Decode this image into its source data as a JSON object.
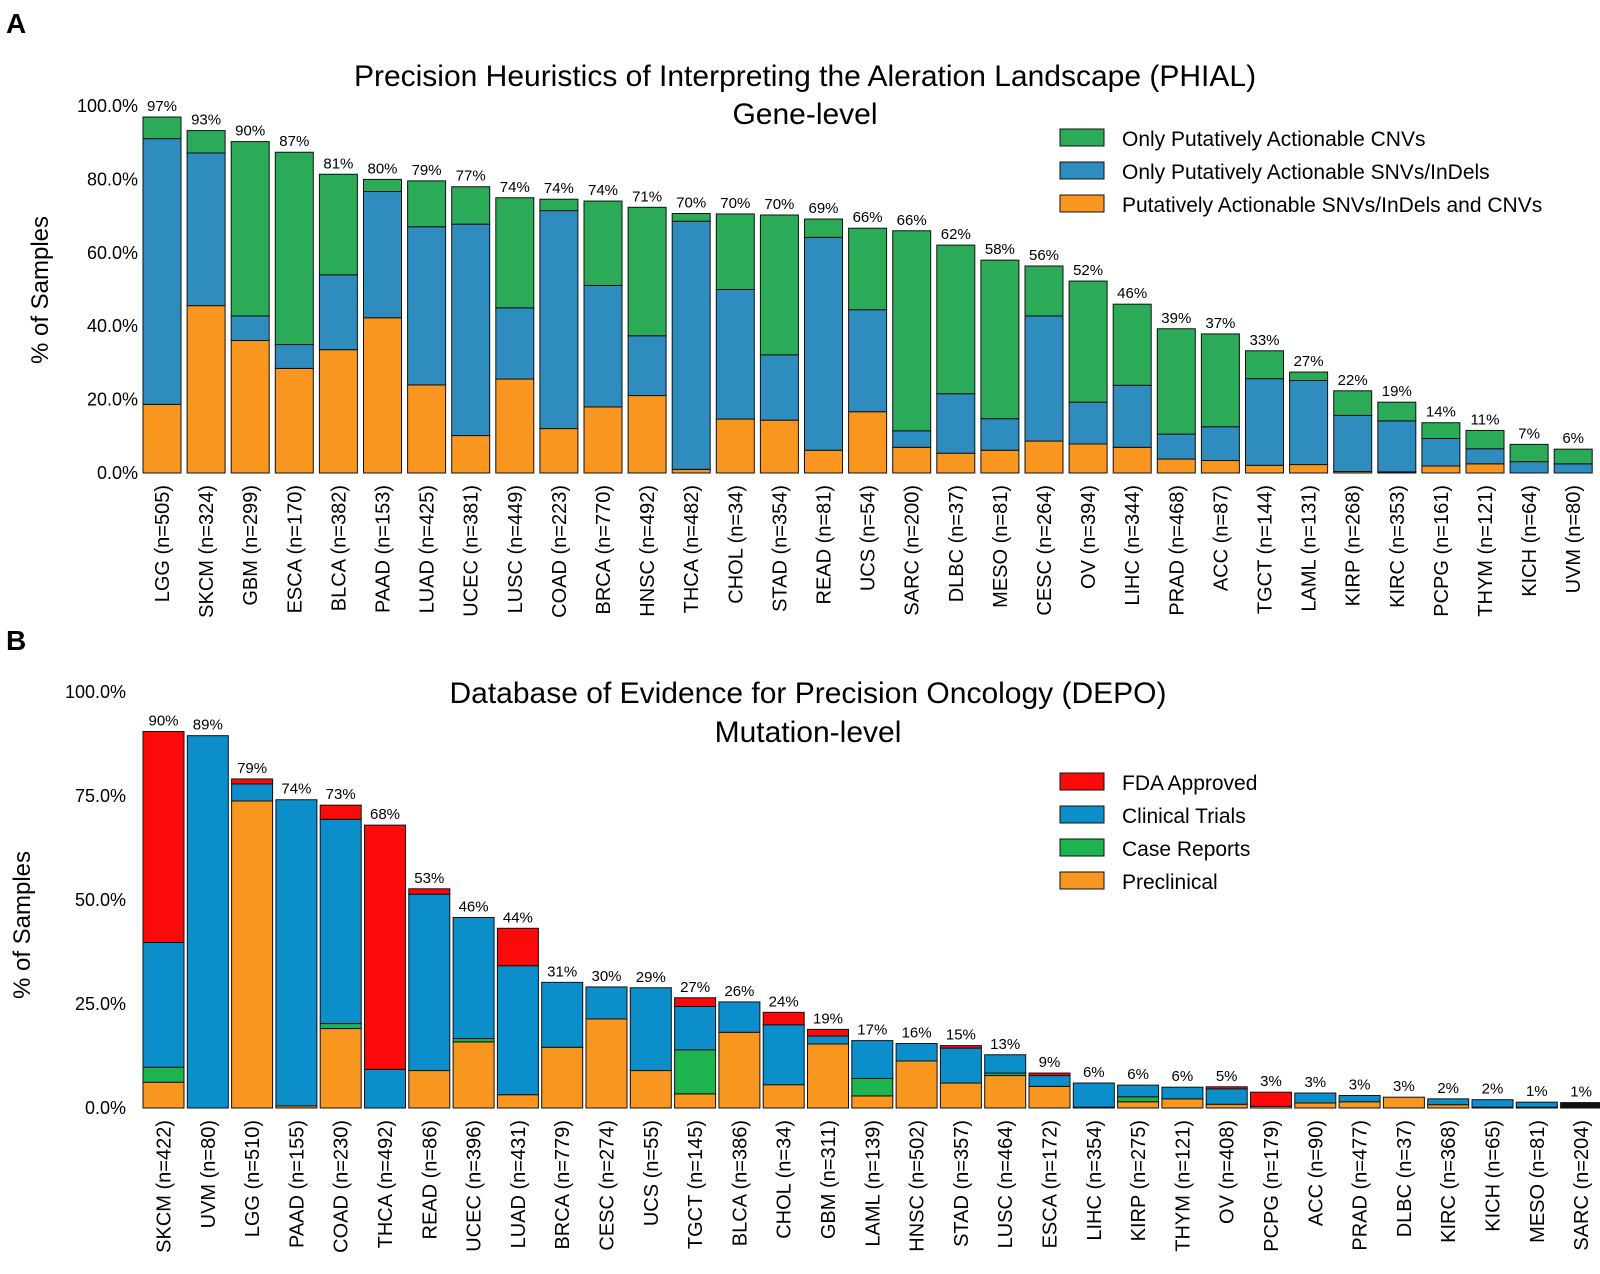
{
  "chart_data": [
    {
      "type": "bar",
      "stacked": true,
      "panel_label": "A",
      "title": "Precision Heuristics of Interpreting the Aleration Landscape (PHIAL)",
      "subtitle": "Gene-level",
      "ylabel": "% of Samples",
      "ylim": [
        0,
        100
      ],
      "yticks": [
        "0.0%",
        "20.0%",
        "40.0%",
        "60.0%",
        "80.0%",
        "100.0%"
      ],
      "legend_position": "top-right",
      "categories": [
        "LGG (n=505)",
        "SKCM (n=324)",
        "GBM (n=299)",
        "ESCA (n=170)",
        "BLCA (n=382)",
        "PAAD (n=153)",
        "LUAD (n=425)",
        "UCEC (n=381)",
        "LUSC (n=449)",
        "COAD (n=223)",
        "BRCA (n=770)",
        "HNSC (n=492)",
        "THCA (n=482)",
        "CHOL (n=34)",
        "STAD (n=354)",
        "READ (n=81)",
        "UCS (n=54)",
        "SARC (n=200)",
        "DLBC (n=37)",
        "MESO (n=81)",
        "CESC (n=264)",
        "OV (n=394)",
        "LIHC (n=344)",
        "PRAD (n=468)",
        "ACC (n=87)",
        "TGCT (n=144)",
        "LAML (n=131)",
        "KIRP (n=268)",
        "KIRC (n=353)",
        "PCPG (n=161)",
        "THYM (n=121)",
        "KICH (n=64)",
        "UVM (n=80)"
      ],
      "totals": [
        "97%",
        "93%",
        "90%",
        "87%",
        "81%",
        "80%",
        "79%",
        "77%",
        "74%",
        "74%",
        "74%",
        "71%",
        "70%",
        "70%",
        "70%",
        "69%",
        "66%",
        "66%",
        "62%",
        "58%",
        "56%",
        "52%",
        "46%",
        "39%",
        "37%",
        "33%",
        "27%",
        "22%",
        "19%",
        "14%",
        "11%",
        "7%",
        "6%"
      ],
      "series": [
        {
          "name": "Putatively Actionable SNVs/InDels and CNVs",
          "color": "#f9961f",
          "values": [
            18.7,
            45.6,
            36.1,
            28.5,
            33.6,
            42.3,
            24.0,
            10.2,
            25.6,
            12.1,
            18.0,
            21.1,
            1.0,
            14.7,
            14.4,
            6.2,
            16.7,
            7.0,
            5.4,
            6.2,
            8.7,
            7.9,
            7.0,
            3.8,
            3.4,
            2.1,
            2.3,
            0.4,
            0.3,
            1.9,
            2.5,
            0.0,
            0.0
          ]
        },
        {
          "name": "Only Putatively Actionable SNVs/InDels",
          "color": "#2f8cbf",
          "values": [
            72.4,
            41.6,
            6.7,
            6.5,
            20.4,
            34.4,
            43.1,
            57.6,
            19.4,
            59.4,
            33.1,
            16.3,
            67.6,
            35.3,
            17.8,
            58.0,
            27.8,
            4.5,
            16.2,
            8.6,
            34.1,
            11.4,
            16.9,
            6.8,
            9.2,
            23.6,
            22.9,
            15.3,
            13.9,
            7.5,
            4.1,
            3.1,
            2.5
          ]
        },
        {
          "name": "Only Putatively Actionable CNVs",
          "color": "#2baa57",
          "values": [
            5.9,
            6.1,
            47.5,
            52.4,
            27.4,
            3.3,
            12.5,
            10.2,
            30.0,
            3.1,
            23.0,
            35.0,
            2.1,
            20.6,
            38.1,
            5.0,
            22.2,
            54.5,
            40.5,
            43.2,
            13.6,
            33.0,
            22.1,
            28.7,
            25.3,
            7.6,
            2.3,
            6.7,
            5.1,
            4.3,
            5.0,
            4.7,
            4.0
          ]
        }
      ]
    },
    {
      "type": "bar",
      "stacked": true,
      "panel_label": "B",
      "title": "Database of Evidence for Precision Oncology (DEPO)",
      "subtitle": "Mutation-level",
      "ylabel": "% of Samples",
      "ylim": [
        0,
        100
      ],
      "yticks": [
        "0.0%",
        "25.0%",
        "50.0%",
        "75.0%",
        "100.0%"
      ],
      "legend_position": "top-right",
      "categories": [
        "SKCM (n=422)",
        "UVM (n=80)",
        "LGG (n=510)",
        "PAAD (n=155)",
        "COAD (n=230)",
        "THCA (n=492)",
        "READ (n=86)",
        "UCEC (n=396)",
        "LUAD (n=431)",
        "BRCA (n=779)",
        "CESC (n=274)",
        "UCS (n=55)",
        "TGCT (n=145)",
        "BLCA (n=386)",
        "CHOL (n=34)",
        "GBM (n=311)",
        "LAML (n=139)",
        "HNSC (n=502)",
        "STAD (n=357)",
        "LUSC (n=464)",
        "ESCA (n=172)",
        "LIHC (n=354)",
        "KIRP (n=275)",
        "THYM (n=121)",
        "OV (n=408)",
        "PCPG (n=179)",
        "ACC (n=90)",
        "PRAD (n=477)",
        "DLBC (n=37)",
        "KIRC (n=368)",
        "KICH (n=65)",
        "MESO (n=81)",
        "SARC (n=204)"
      ],
      "totals": [
        "90%",
        "89%",
        "79%",
        "74%",
        "73%",
        "68%",
        "53%",
        "46%",
        "44%",
        "31%",
        "30%",
        "29%",
        "27%",
        "26%",
        "24%",
        "19%",
        "17%",
        "16%",
        "15%",
        "13%",
        "9%",
        "6%",
        "6%",
        "6%",
        "5%",
        "3%",
        "3%",
        "3%",
        "3%",
        "2%",
        "2%",
        "1%",
        "1%"
      ],
      "series": [
        {
          "name": "Preclinical",
          "color": "#f9961f",
          "values": [
            6.2,
            0.0,
            73.8,
            0.5,
            19.1,
            0.0,
            9.0,
            15.9,
            3.2,
            14.6,
            21.4,
            9.0,
            3.4,
            18.2,
            5.6,
            15.4,
            2.9,
            11.3,
            6.0,
            7.8,
            5.2,
            0.2,
            1.5,
            2.2,
            0.9,
            0.4,
            1.2,
            1.5,
            2.6,
            0.8,
            0.2,
            0.2,
            0.0
          ]
        },
        {
          "name": "Case Reports",
          "color": "#1db34f",
          "values": [
            3.6,
            0.0,
            0.0,
            0.0,
            1.2,
            0.0,
            0.0,
            0.8,
            0.0,
            0.0,
            0.0,
            0.0,
            10.6,
            0.0,
            0.0,
            0.0,
            4.2,
            0.0,
            0.0,
            0.6,
            0.0,
            0.0,
            1.2,
            0.0,
            0.0,
            0.0,
            0.0,
            0.0,
            0.0,
            0.0,
            0.0,
            0.0,
            0.0
          ]
        },
        {
          "name": "Clinical Trials",
          "color": "#0c8ecb",
          "values": [
            30.0,
            89.5,
            4.1,
            73.6,
            49.1,
            9.3,
            42.4,
            29.1,
            31.0,
            15.6,
            7.7,
            19.9,
            10.4,
            7.3,
            14.4,
            1.9,
            9.1,
            4.2,
            8.4,
            4.4,
            2.6,
            5.8,
            2.8,
            2.8,
            3.7,
            0.0,
            2.4,
            1.5,
            0.0,
            1.4,
            1.8,
            1.2,
            0.0
          ]
        },
        {
          "name": "FDA Approved",
          "color": "#fc0a0a",
          "values": [
            50.7,
            0.0,
            1.2,
            0.0,
            3.4,
            58.7,
            1.3,
            0.0,
            9.0,
            0.0,
            0.0,
            0.0,
            2.1,
            0.0,
            3.0,
            1.6,
            0.0,
            0.0,
            0.6,
            0.0,
            0.6,
            0.0,
            0.0,
            0.0,
            0.5,
            3.4,
            0.0,
            0.0,
            0.0,
            0.0,
            0.0,
            0.0,
            0.0
          ]
        },
        {
          "name": "",
          "color": "#111111",
          "values": [
            0.0,
            0.0,
            0.0,
            0.0,
            0.0,
            0.0,
            0.0,
            0.0,
            0.0,
            0.0,
            0.0,
            0.0,
            0.0,
            0.0,
            0.0,
            0.0,
            0.0,
            0.0,
            0.0,
            0.0,
            0.0,
            0.0,
            0.0,
            0.0,
            0.0,
            0.0,
            0.0,
            0.0,
            0.0,
            0.0,
            0.0,
            0.0,
            1.3
          ]
        }
      ],
      "legend_order": [
        "FDA Approved",
        "Clinical Trials",
        "Case Reports",
        "Preclinical"
      ]
    }
  ]
}
